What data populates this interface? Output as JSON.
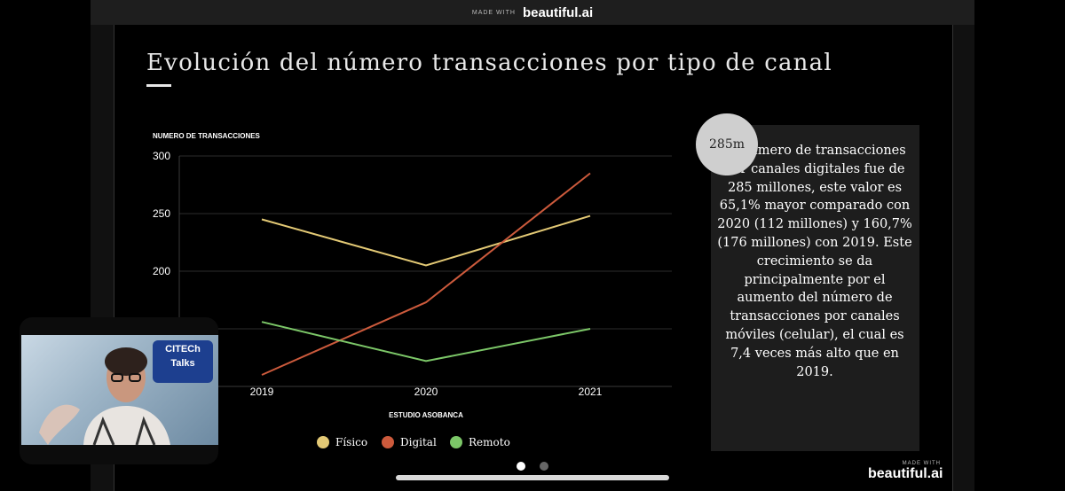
{
  "header": {
    "made_with": "MADE WITH",
    "brand": "beautiful.ai"
  },
  "slide": {
    "title": "Evolución del número transacciones por tipo de canal",
    "stat": {
      "badge": "285m",
      "text": "El número de transacciones por canales digitales fue de 285 millones, este valor es 65,1% mayor comparado con 2020 (112 millones) y 160,7% (176 millones) con 2019. Este crecimiento se da principalmente por el aumento del número de transacciones por canales móviles (celular), el cual es 7,4 veces más alto que en 2019."
    }
  },
  "chart_data": {
    "type": "line",
    "x": [
      "2019",
      "2020",
      "2021"
    ],
    "series": [
      {
        "name": "Físico",
        "color": "#e3c975",
        "values": [
          245,
          205,
          248
        ]
      },
      {
        "name": "Digital",
        "color": "#cc5a3c",
        "values": [
          110,
          173,
          285
        ]
      },
      {
        "name": "Remoto",
        "color": "#7cc768",
        "values": [
          156,
          122,
          150
        ]
      }
    ],
    "ylabel": "NUMERO DE TRANSACCIONES",
    "xlabel": "ESTUDIO ASOBANCA",
    "ylim": [
      100,
      300
    ],
    "yticks": [
      150,
      200,
      250,
      300
    ],
    "grid": true,
    "legend": "bottom"
  },
  "webcam": {
    "logo_line1": "CITECh",
    "logo_line2": "Talks"
  },
  "pagination": {
    "count": 2,
    "active": 0
  },
  "footer": {
    "made_with": "MADE WITH",
    "brand": "beautiful.ai"
  }
}
